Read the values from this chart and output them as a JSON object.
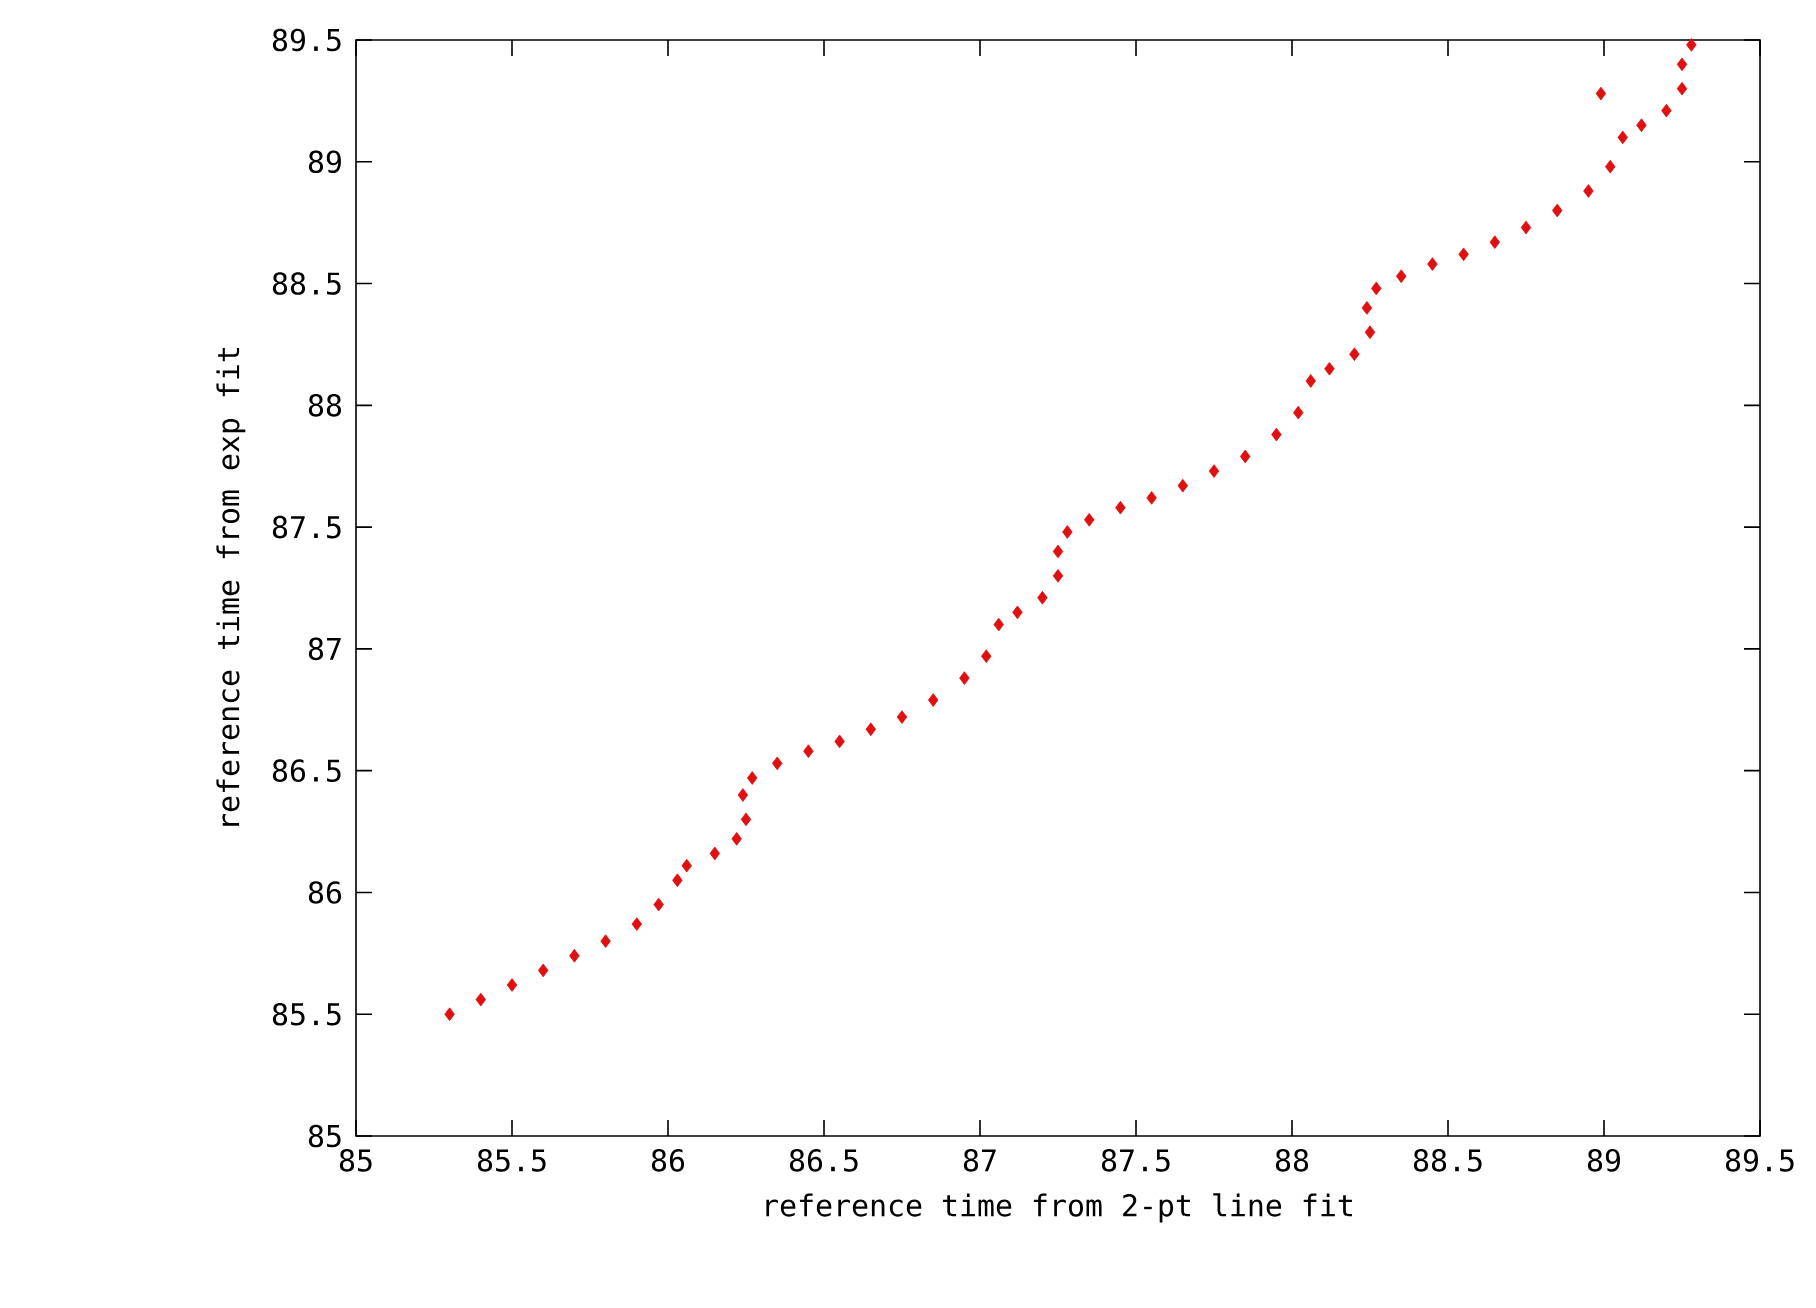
{
  "chart_data": {
    "type": "scatter",
    "xlabel": "reference time from 2-pt line fit",
    "ylabel": "reference time from exp fit",
    "xlim": [
      85,
      89.5
    ],
    "ylim": [
      85,
      89.5
    ],
    "xticks": [
      85,
      85.5,
      86,
      86.5,
      87,
      87.5,
      88,
      88.5,
      89,
      89.5
    ],
    "yticks": [
      85,
      85.5,
      86,
      86.5,
      87,
      87.5,
      88,
      88.5,
      89,
      89.5
    ],
    "marker": "diamond",
    "grid": false,
    "series": [
      {
        "color": "#e01010",
        "x": [
          85.3,
          85.4,
          85.5,
          85.6,
          85.7,
          85.8,
          85.9,
          85.97,
          86.03,
          86.06,
          86.15,
          86.22,
          86.25,
          86.24,
          86.27,
          86.35,
          86.45,
          86.55,
          86.65,
          86.75,
          86.85,
          86.95,
          87.02,
          87.06,
          87.12,
          87.2,
          87.25,
          87.25,
          87.28,
          87.35,
          87.45,
          87.55,
          87.65,
          87.75,
          87.85,
          87.95,
          88.02,
          88.06,
          88.12,
          88.2,
          88.25,
          88.24,
          88.27,
          88.35,
          88.45,
          88.55,
          88.65,
          88.75,
          88.85,
          88.95,
          89.02,
          89.06,
          89.12,
          89.2,
          89.25,
          89.25,
          89.28,
          88.99
        ],
        "values": [
          85.5,
          85.56,
          85.62,
          85.68,
          85.74,
          85.8,
          85.87,
          85.95,
          86.05,
          86.11,
          86.16,
          86.22,
          86.3,
          86.4,
          86.47,
          86.53,
          86.58,
          86.62,
          86.67,
          86.72,
          86.79,
          86.88,
          86.97,
          87.1,
          87.15,
          87.21,
          87.3,
          87.4,
          87.48,
          87.53,
          87.58,
          87.62,
          87.67,
          87.73,
          87.79,
          87.88,
          87.97,
          88.1,
          88.15,
          88.21,
          88.3,
          88.4,
          88.48,
          88.53,
          88.58,
          88.62,
          88.67,
          88.73,
          88.8,
          88.88,
          88.98,
          89.1,
          89.15,
          89.21,
          89.3,
          89.4,
          89.48,
          89.28
        ]
      }
    ]
  }
}
